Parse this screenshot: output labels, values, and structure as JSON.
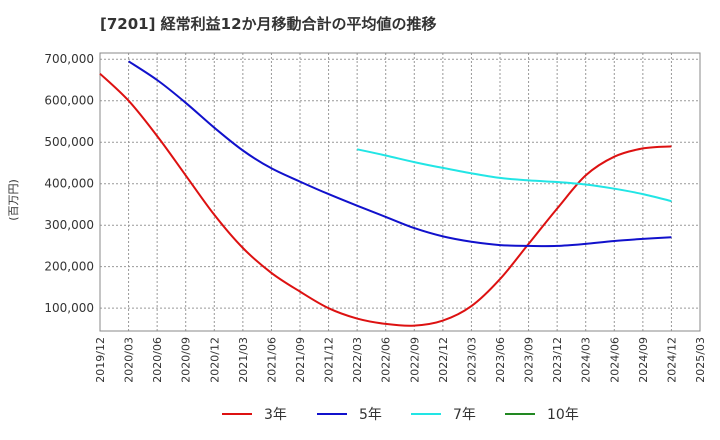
{
  "chart_data": {
    "type": "line",
    "title": "[7201]  経常利益12か月移動合計の平均値の推移",
    "ylabel": "(百万円)",
    "xlabel": "",
    "x_tick_labels": [
      "2019/12",
      "2020/03",
      "2020/06",
      "2020/09",
      "2020/12",
      "2021/03",
      "2021/06",
      "2021/09",
      "2021/12",
      "2022/03",
      "2022/06",
      "2022/09",
      "2022/12",
      "2023/03",
      "2023/06",
      "2023/09",
      "2023/12",
      "2024/03",
      "2024/06",
      "2024/09",
      "2024/12",
      "2025/03"
    ],
    "y_tick_labels": [
      "100,000",
      "200,000",
      "300,000",
      "400,000",
      "500,000",
      "600,000",
      "700,000"
    ],
    "y_ticks": [
      100000,
      200000,
      300000,
      400000,
      500000,
      600000,
      700000
    ],
    "ylim": [
      45000,
      715000
    ],
    "grid": true,
    "legend_position": "bottom",
    "series": [
      {
        "name": "3年",
        "color": "#dd1111",
        "x": [
          "2019/12",
          "2020/03",
          "2020/06",
          "2020/09",
          "2020/12",
          "2021/03",
          "2021/06",
          "2021/09",
          "2021/12",
          "2022/03",
          "2022/06",
          "2022/09",
          "2022/12",
          "2023/03",
          "2023/06",
          "2023/09",
          "2023/12",
          "2024/03",
          "2024/06",
          "2024/09",
          "2024/12"
        ],
        "values": [
          665000,
          600000,
          515000,
          420000,
          325000,
          245000,
          185000,
          140000,
          100000,
          75000,
          62000,
          58000,
          70000,
          105000,
          170000,
          255000,
          340000,
          420000,
          465000,
          485000,
          490000
        ]
      },
      {
        "name": "5年",
        "color": "#1111cc",
        "x": [
          "2020/03",
          "2020/06",
          "2020/09",
          "2020/12",
          "2021/03",
          "2021/06",
          "2021/09",
          "2021/12",
          "2022/03",
          "2022/06",
          "2022/09",
          "2022/12",
          "2023/03",
          "2023/06",
          "2023/09",
          "2023/12",
          "2024/03",
          "2024/06",
          "2024/09",
          "2024/12"
        ],
        "values": [
          695000,
          650000,
          595000,
          535000,
          480000,
          437000,
          405000,
          375000,
          347000,
          320000,
          293000,
          273000,
          260000,
          252000,
          250000,
          250000,
          255000,
          262000,
          267000,
          271000
        ]
      },
      {
        "name": "7年",
        "color": "#22e5e5",
        "x": [
          "2022/03",
          "2022/06",
          "2022/09",
          "2022/12",
          "2023/03",
          "2023/06",
          "2023/09",
          "2023/12",
          "2024/03",
          "2024/06",
          "2024/09",
          "2024/12"
        ],
        "values": [
          483000,
          468000,
          452000,
          438000,
          425000,
          414000,
          408000,
          404000,
          398000,
          388000,
          375000,
          358000
        ]
      },
      {
        "name": "10年",
        "color": "#228822",
        "x": [],
        "values": []
      }
    ]
  }
}
